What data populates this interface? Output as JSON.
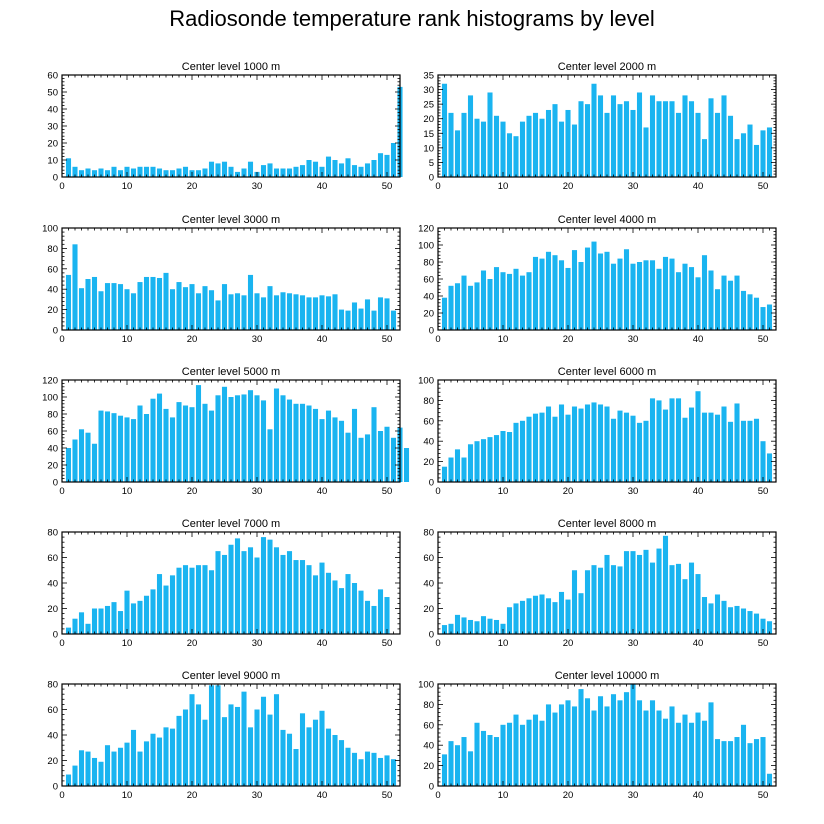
{
  "page_title": "Radiosonde temperature rank histograms by level",
  "bar_color": "#1ab4f0",
  "chart_data": [
    {
      "type": "bar",
      "title": "Center level 1000 m",
      "xlim": [
        0,
        52
      ],
      "xticks": [
        0,
        10,
        20,
        30,
        40,
        50
      ],
      "ylim": [
        0,
        60
      ],
      "yticks": [
        0,
        10,
        20,
        30,
        40,
        50,
        60
      ],
      "values": [
        11,
        6,
        4,
        5,
        4,
        5,
        4,
        6,
        4,
        6,
        5,
        6,
        6,
        6,
        5,
        4,
        4,
        5,
        6,
        4,
        4,
        5,
        9,
        8,
        9,
        6,
        3,
        5,
        9,
        3,
        7,
        8,
        5,
        5,
        5,
        6,
        7,
        10,
        9,
        6,
        12,
        10,
        8,
        11,
        7,
        6,
        8,
        10,
        14,
        13,
        20,
        53
      ]
    },
    {
      "type": "bar",
      "title": "Center level 2000 m",
      "xlim": [
        0,
        52
      ],
      "xticks": [
        0,
        10,
        20,
        30,
        40,
        50
      ],
      "ylim": [
        0,
        35
      ],
      "yticks": [
        0,
        5,
        10,
        15,
        20,
        25,
        30,
        35
      ],
      "values": [
        32,
        22,
        16,
        22,
        28,
        20,
        19,
        29,
        21,
        19,
        15,
        14,
        19,
        21,
        22,
        20,
        23,
        25,
        19,
        23,
        18,
        26,
        25,
        32,
        28,
        22,
        28,
        25,
        26,
        23,
        29,
        17,
        28,
        26,
        26,
        26,
        22,
        28,
        26,
        22,
        13,
        27,
        22,
        28,
        21,
        13,
        15,
        18,
        11,
        16,
        17
      ]
    },
    {
      "type": "bar",
      "title": "Center level 3000 m",
      "xlim": [
        0,
        52
      ],
      "xticks": [
        0,
        10,
        20,
        30,
        40,
        50
      ],
      "ylim": [
        0,
        100
      ],
      "yticks": [
        0,
        20,
        40,
        60,
        80,
        100
      ],
      "values": [
        54,
        84,
        41,
        50,
        52,
        38,
        46,
        46,
        45,
        40,
        36,
        47,
        52,
        52,
        51,
        56,
        40,
        47,
        42,
        45,
        36,
        43,
        39,
        29,
        45,
        35,
        36,
        34,
        54,
        36,
        32,
        43,
        34,
        37,
        36,
        35,
        34,
        32,
        32,
        34,
        33,
        35,
        20,
        19,
        27,
        21,
        30,
        19,
        32,
        31,
        19
      ]
    },
    {
      "type": "bar",
      "title": "Center level 4000 m",
      "xlim": [
        0,
        52
      ],
      "xticks": [
        0,
        10,
        20,
        30,
        40,
        50
      ],
      "ylim": [
        0,
        120
      ],
      "yticks": [
        0,
        20,
        40,
        60,
        80,
        100,
        120
      ],
      "values": [
        38,
        52,
        55,
        64,
        52,
        56,
        70,
        60,
        74,
        68,
        66,
        72,
        64,
        68,
        86,
        84,
        92,
        88,
        82,
        73,
        94,
        80,
        97,
        104,
        90,
        92,
        78,
        84,
        95,
        78,
        80,
        82,
        82,
        72,
        86,
        84,
        68,
        78,
        74,
        62,
        88,
        70,
        48,
        64,
        58,
        64,
        46,
        42,
        38,
        27,
        30
      ]
    },
    {
      "type": "bar",
      "title": "Center level 5000 m",
      "xlim": [
        0,
        52
      ],
      "xticks": [
        0,
        10,
        20,
        30,
        40,
        50
      ],
      "ylim": [
        0,
        120
      ],
      "yticks": [
        0,
        20,
        40,
        60,
        80,
        100,
        120
      ],
      "values": [
        40,
        50,
        62,
        58,
        45,
        84,
        83,
        81,
        78,
        76,
        74,
        90,
        80,
        98,
        104,
        86,
        76,
        94,
        90,
        88,
        114,
        92,
        84,
        102,
        112,
        100,
        102,
        103,
        108,
        102,
        96,
        62,
        110,
        102,
        97,
        92,
        92,
        90,
        86,
        74,
        84,
        76,
        72,
        58,
        86,
        52,
        56,
        88,
        60,
        65,
        52,
        64,
        40
      ]
    },
    {
      "type": "bar",
      "title": "Center level 6000 m",
      "xlim": [
        0,
        52
      ],
      "xticks": [
        0,
        10,
        20,
        30,
        40,
        50
      ],
      "ylim": [
        0,
        100
      ],
      "yticks": [
        0,
        20,
        40,
        60,
        80,
        100
      ],
      "values": [
        15,
        24,
        32,
        24,
        37,
        40,
        42,
        44,
        46,
        50,
        49,
        58,
        60,
        64,
        67,
        68,
        74,
        64,
        76,
        66,
        74,
        72,
        76,
        78,
        76,
        74,
        62,
        70,
        68,
        65,
        58,
        60,
        82,
        80,
        71,
        82,
        82,
        63,
        73,
        89,
        68,
        68,
        66,
        74,
        59,
        77,
        60,
        60,
        62,
        40,
        28
      ]
    },
    {
      "type": "bar",
      "title": "Center level 7000 m",
      "xlim": [
        0,
        52
      ],
      "xticks": [
        0,
        10,
        20,
        30,
        40,
        50
      ],
      "ylim": [
        0,
        80
      ],
      "yticks": [
        0,
        20,
        40,
        60,
        80
      ],
      "values": [
        5,
        12,
        17,
        8,
        20,
        20,
        22,
        25,
        18,
        34,
        24,
        26,
        30,
        35,
        47,
        38,
        46,
        52,
        54,
        52,
        54,
        54,
        50,
        65,
        62,
        70,
        75,
        65,
        68,
        60,
        76,
        74,
        68,
        62,
        65,
        58,
        58,
        54,
        46,
        56,
        48,
        42,
        36,
        47,
        40,
        34,
        26,
        22,
        35,
        29
      ]
    },
    {
      "type": "bar",
      "title": "Center level 8000 m",
      "xlim": [
        0,
        52
      ],
      "xticks": [
        0,
        10,
        20,
        30,
        40,
        50
      ],
      "ylim": [
        0,
        80
      ],
      "yticks": [
        0,
        20,
        40,
        60,
        80
      ],
      "values": [
        7,
        8,
        15,
        13,
        11,
        10,
        14,
        12,
        11,
        8,
        21,
        24,
        26,
        28,
        30,
        31,
        28,
        25,
        33,
        27,
        50,
        32,
        50,
        54,
        52,
        62,
        54,
        53,
        65,
        65,
        62,
        66,
        56,
        67,
        77,
        54,
        55,
        43,
        56,
        47,
        29,
        24,
        31,
        26,
        21,
        22,
        20,
        18,
        16,
        12,
        10
      ]
    },
    {
      "type": "bar",
      "title": "Center level 9000 m",
      "xlim": [
        0,
        52
      ],
      "xticks": [
        0,
        10,
        20,
        30,
        40,
        50
      ],
      "ylim": [
        0,
        80
      ],
      "yticks": [
        0,
        20,
        40,
        60,
        80
      ],
      "values": [
        9,
        16,
        28,
        27,
        22,
        19,
        32,
        27,
        30,
        34,
        44,
        27,
        35,
        41,
        38,
        46,
        45,
        55,
        60,
        72,
        64,
        52,
        79,
        79,
        54,
        64,
        62,
        74,
        46,
        60,
        70,
        56,
        72,
        44,
        41,
        29,
        57,
        46,
        52,
        59,
        45,
        40,
        36,
        30,
        26,
        21,
        27,
        26,
        22,
        24,
        21
      ]
    },
    {
      "type": "bar",
      "title": "Center level 10000 m",
      "xlim": [
        0,
        52
      ],
      "xticks": [
        0,
        10,
        20,
        30,
        40,
        50
      ],
      "ylim": [
        0,
        100
      ],
      "yticks": [
        0,
        20,
        40,
        60,
        80,
        100
      ],
      "values": [
        31,
        44,
        40,
        48,
        34,
        62,
        54,
        50,
        48,
        60,
        62,
        70,
        60,
        65,
        70,
        64,
        80,
        72,
        80,
        84,
        78,
        95,
        86,
        74,
        88,
        78,
        90,
        84,
        92,
        100,
        84,
        74,
        84,
        74,
        66,
        78,
        62,
        70,
        62,
        72,
        64,
        82,
        46,
        44,
        44,
        48,
        60,
        42,
        46,
        48,
        12
      ]
    }
  ]
}
